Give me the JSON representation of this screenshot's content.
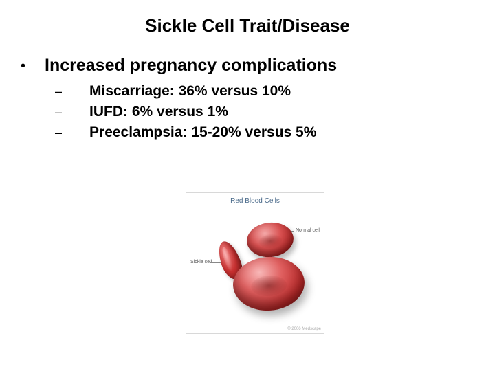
{
  "title": "Sickle Cell Trait/Disease",
  "mainBullet": {
    "text": "Increased pregnancy complications"
  },
  "subBullets": [
    {
      "text": "Miscarriage: 36% versus 10%"
    },
    {
      "text": "IUFD: 6% versus 1%"
    },
    {
      "text": "Preeclampsia: 15-20% versus 5%"
    }
  ],
  "diagram": {
    "title": "Red Blood Cells",
    "leftLabel": "Sickle cell",
    "rightLabel": "Normal cell",
    "copyright": "© 2006 Medscape"
  }
}
